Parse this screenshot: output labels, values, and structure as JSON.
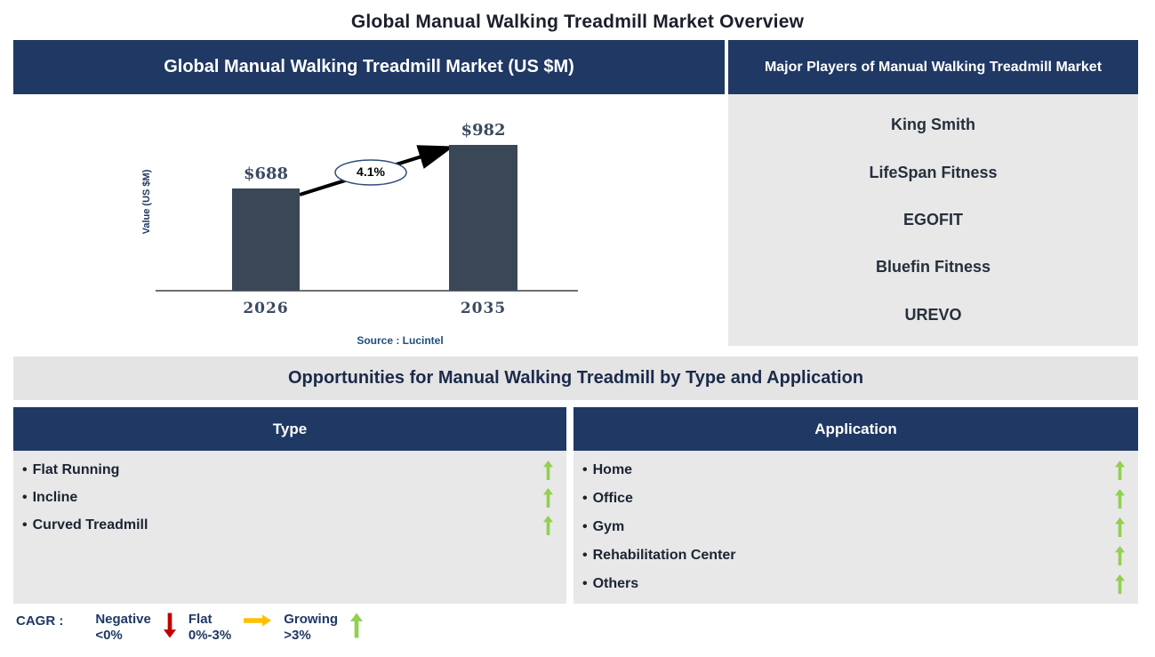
{
  "page_title": "Global Manual Walking Treadmill Market Overview",
  "market_chart_panel": {
    "header": "Global Manual Walking Treadmill Market (US $M)",
    "source": "Source : Lucintel"
  },
  "chart_data": {
    "type": "bar",
    "title": "Global Manual Walking Treadmill Market (US $M)",
    "categories": [
      "2026",
      "2035"
    ],
    "values": [
      688,
      982
    ],
    "value_labels": [
      "$688",
      "$982"
    ],
    "ylabel": "Value (US $M)",
    "annotation": "4.1%",
    "annotation_meaning": "CAGR between 2026 and 2035",
    "source": "Source : Lucintel",
    "bar_color": "#3A4757",
    "ylim": [
      0,
      1100
    ],
    "grid": false,
    "legend_position": "none"
  },
  "major_players_panel": {
    "header": "Major Players of Manual Walking Treadmill Market",
    "players": [
      "King Smith",
      "LifeSpan Fitness",
      "EGOFIT",
      "Bluefin Fitness",
      "UREVO"
    ]
  },
  "opportunities_banner": "Opportunities for Manual Walking Treadmill by Type and Application",
  "type_panel": {
    "header": "Type",
    "bullet": "•",
    "items": [
      {
        "label": "Flat Running",
        "trend": "growing"
      },
      {
        "label": "Incline",
        "trend": "growing"
      },
      {
        "label": "Curved Treadmill",
        "trend": "growing"
      }
    ]
  },
  "application_panel": {
    "header": "Application",
    "bullet": "•",
    "items": [
      {
        "label": "Home",
        "trend": "growing"
      },
      {
        "label": "Office",
        "trend": "growing"
      },
      {
        "label": "Gym",
        "trend": "growing"
      },
      {
        "label": "Rehabilitation Center",
        "trend": "growing"
      },
      {
        "label": "Others",
        "trend": "growing"
      }
    ]
  },
  "cagr_legend": {
    "label": "CAGR :",
    "entries": [
      {
        "name": "Negative",
        "range": "<0%",
        "direction": "down",
        "color": "#C00000"
      },
      {
        "name": "Flat",
        "range": "0%-3%",
        "direction": "right",
        "color": "#FFC000"
      },
      {
        "name": "Growing",
        "range": ">3%",
        "direction": "up",
        "color": "#92D050"
      }
    ]
  },
  "colors": {
    "header_navy": "#1F3864",
    "panel_gray": "#E8E8E8",
    "banner_gray": "#E4E4E4",
    "bar": "#3A4757",
    "growing_green": "#92D050",
    "negative_red": "#C00000",
    "flat_orange": "#FFC000",
    "source_blue": "#1F4E79"
  }
}
